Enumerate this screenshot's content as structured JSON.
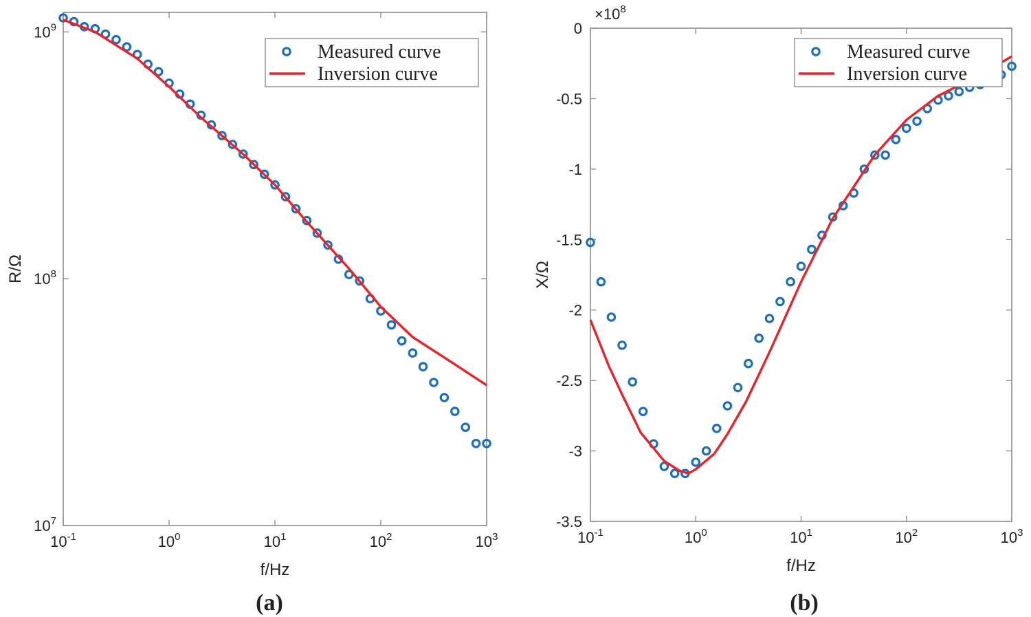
{
  "colors": {
    "measured": "#1f6fb8",
    "inversion": "#e8232b"
  },
  "chart_data": [
    {
      "panel_label": "(a)",
      "type": "scatter",
      "xscale": "log",
      "yscale": "log",
      "xlabel": "f/Hz",
      "ylabel": "R/Ω",
      "xlim": [
        0.1,
        1000
      ],
      "ylim": [
        10000000,
        1200000000
      ],
      "x_ticks": [
        {
          "value": 0.1,
          "base": "10",
          "exp": "-1"
        },
        {
          "value": 1,
          "base": "10",
          "exp": "0"
        },
        {
          "value": 10,
          "base": "10",
          "exp": "1"
        },
        {
          "value": 100,
          "base": "10",
          "exp": "2"
        },
        {
          "value": 1000,
          "base": "10",
          "exp": "3"
        }
      ],
      "y_ticks": [
        {
          "value": 10000000,
          "base": "10",
          "exp": "7"
        },
        {
          "value": 100000000,
          "base": "10",
          "exp": "8"
        },
        {
          "value": 1000000000,
          "base": "10",
          "exp": "9"
        }
      ],
      "legend": {
        "position": "top-right",
        "entries": [
          "Measured curve",
          "Inversion curve"
        ]
      },
      "series": [
        {
          "name": "Measured curve",
          "style": "markers",
          "x": [
            0.1,
            0.126,
            0.158,
            0.2,
            0.251,
            0.316,
            0.398,
            0.501,
            0.631,
            0.794,
            1,
            1.26,
            1.58,
            2,
            2.51,
            3.16,
            3.98,
            5.01,
            6.31,
            7.94,
            10,
            12.6,
            15.8,
            20,
            25.1,
            31.6,
            39.8,
            50.1,
            63.1,
            79.4,
            100,
            126,
            158,
            200,
            251,
            316,
            398,
            501,
            631,
            794,
            1000
          ],
          "y": [
            1140000000,
            1100000000,
            1050000000,
            1030000000,
            980000000,
            930000000,
            870000000,
            810000000,
            740000000,
            690000000,
            620000000,
            560000000,
            510000000,
            460000000,
            420000000,
            380000000,
            350000000,
            320000000,
            290000000,
            265000000,
            240000000,
            215000000,
            192000000,
            172000000,
            153000000,
            137000000,
            120000000,
            104000000,
            98000000,
            83000000,
            74000000,
            65000000,
            56000000,
            50000000,
            44000000,
            38000000,
            33000000,
            29000000,
            25000000,
            21500000,
            21500000
          ]
        },
        {
          "name": "Inversion curve",
          "style": "line",
          "x": [
            0.1,
            0.2,
            0.5,
            1,
            2,
            5,
            10,
            20,
            50,
            100,
            200,
            500,
            1000
          ],
          "y": [
            1120000000,
            1000000000,
            780000000,
            600000000,
            450000000,
            320000000,
            240000000,
            170000000,
            110000000,
            77000000,
            58000000,
            45000000,
            37000000
          ]
        }
      ]
    },
    {
      "panel_label": "(b)",
      "type": "scatter",
      "xscale": "log",
      "yscale": "linear",
      "xlabel": "f/Hz",
      "ylabel": "X/Ω",
      "y_multiplier_base": "×10",
      "y_multiplier_exp": "8",
      "xlim": [
        0.1,
        1000
      ],
      "ylim": [
        -3.5,
        0
      ],
      "x_ticks": [
        {
          "value": 0.1,
          "base": "10",
          "exp": "-1"
        },
        {
          "value": 1,
          "base": "10",
          "exp": "0"
        },
        {
          "value": 10,
          "base": "10",
          "exp": "1"
        },
        {
          "value": 100,
          "base": "10",
          "exp": "2"
        },
        {
          "value": 1000,
          "base": "10",
          "exp": "3"
        }
      ],
      "y_ticks": [
        {
          "value": 0,
          "label": "0"
        },
        {
          "value": -0.5,
          "label": "-0.5"
        },
        {
          "value": -1,
          "label": "-1"
        },
        {
          "value": -1.5,
          "label": "-1.5"
        },
        {
          "value": -2,
          "label": "-2"
        },
        {
          "value": -2.5,
          "label": "-2.5"
        },
        {
          "value": -3,
          "label": "-3"
        },
        {
          "value": -3.5,
          "label": "-3.5"
        }
      ],
      "legend": {
        "position": "top-right",
        "entries": [
          "Measured curve",
          "Inversion curve"
        ]
      },
      "series": [
        {
          "name": "Measured curve",
          "style": "markers",
          "x": [
            0.1,
            0.126,
            0.158,
            0.2,
            0.251,
            0.316,
            0.398,
            0.501,
            0.631,
            0.794,
            1,
            1.26,
            1.58,
            2,
            2.51,
            3.16,
            3.98,
            5.01,
            6.31,
            7.94,
            10,
            12.6,
            15.8,
            20,
            25.1,
            31.6,
            39.8,
            50.1,
            63.1,
            79.4,
            100,
            126,
            158,
            200,
            251,
            316,
            398,
            501,
            631,
            794,
            1000
          ],
          "y": [
            -1.52,
            -1.8,
            -2.05,
            -2.25,
            -2.51,
            -2.72,
            -2.95,
            -3.11,
            -3.16,
            -3.16,
            -3.08,
            -3.0,
            -2.84,
            -2.68,
            -2.55,
            -2.38,
            -2.2,
            -2.06,
            -1.94,
            -1.8,
            -1.69,
            -1.57,
            -1.47,
            -1.34,
            -1.26,
            -1.17,
            -1.0,
            -0.9,
            -0.9,
            -0.79,
            -0.71,
            -0.66,
            -0.57,
            -0.51,
            -0.48,
            -0.45,
            -0.42,
            -0.4,
            -0.38,
            -0.33,
            -0.27
          ]
        },
        {
          "name": "Inversion curve",
          "style": "line",
          "x": [
            0.1,
            0.15,
            0.2,
            0.3,
            0.5,
            0.7,
            0.85,
            1,
            1.5,
            2,
            3,
            5,
            10,
            20,
            50,
            100,
            200,
            500,
            1000
          ],
          "y": [
            -2.07,
            -2.4,
            -2.6,
            -2.87,
            -3.07,
            -3.14,
            -3.16,
            -3.13,
            -3.02,
            -2.88,
            -2.65,
            -2.3,
            -1.8,
            -1.35,
            -0.9,
            -0.65,
            -0.48,
            -0.33,
            -0.2
          ]
        }
      ]
    }
  ]
}
